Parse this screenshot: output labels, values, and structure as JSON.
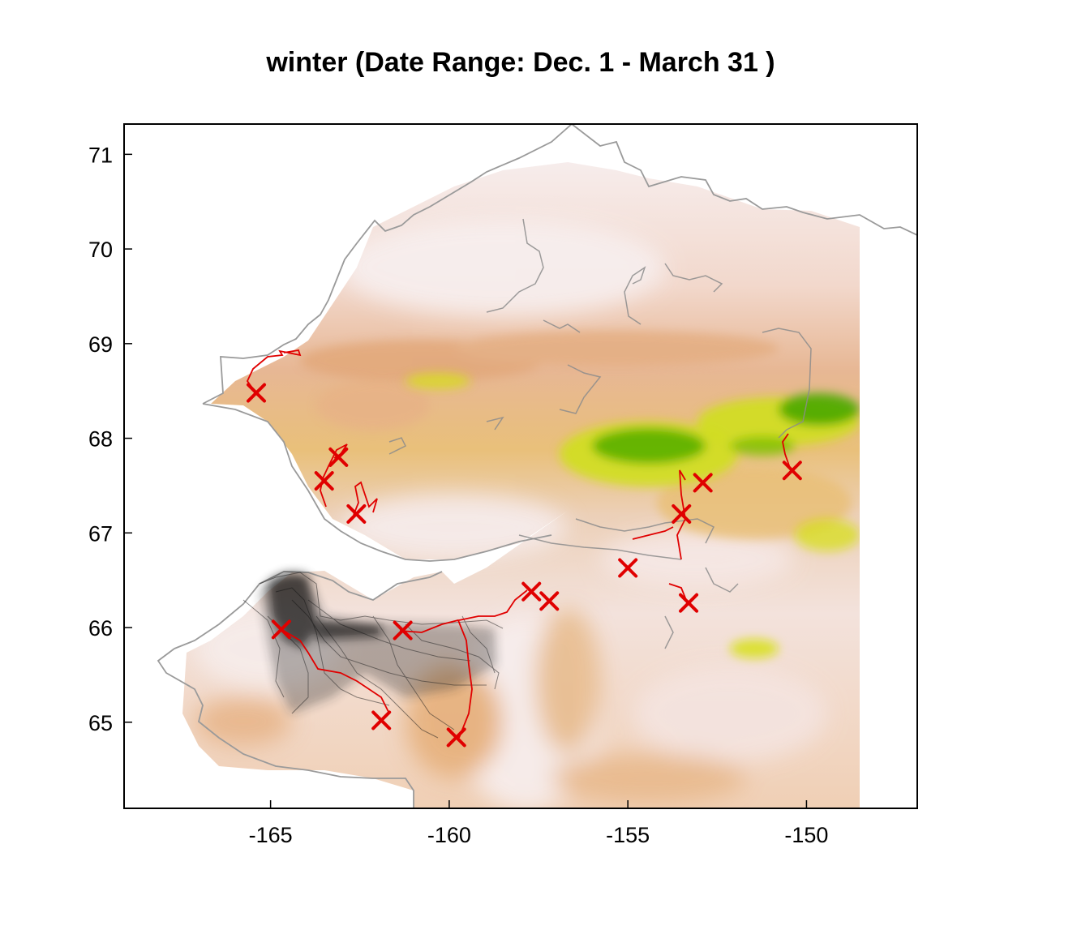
{
  "title": "winter (Date Range:  Dec. 1 - March 31 )",
  "colors": {
    "relief_low": "#f5e6e3",
    "relief_mid": "#e6b48c",
    "relief_high": "#e8c45a",
    "peaks_yellow": "#d6e010",
    "peaks_green": "#4aa800",
    "track_dense": "#1a1a1a",
    "track_grey": "#8c8c8c",
    "track_red": "#e00000",
    "marker_red": "#e00000",
    "coastline": "#9a9a9a"
  },
  "chart_data": {
    "type": "scatter",
    "title": "winter (Date Range:  Dec. 1 - March 31 )",
    "xlabel": "",
    "ylabel": "",
    "xlim": [
      -169.1,
      -146.9
    ],
    "ylim": [
      64.09,
      71.32
    ],
    "xticks": [
      -165,
      -160,
      -155,
      -150
    ],
    "yticks": [
      65,
      66,
      67,
      68,
      69,
      70,
      71
    ],
    "xtick_labels": [
      "-165",
      "-160",
      "-155",
      "-150"
    ],
    "ytick_labels": [
      "65",
      "66",
      "67",
      "68",
      "69",
      "70",
      "71"
    ],
    "grid": false,
    "legend": "none",
    "markers": [
      {
        "lon": -165.4,
        "lat": 68.48
      },
      {
        "lon": -163.1,
        "lat": 67.8
      },
      {
        "lon": -163.5,
        "lat": 67.55
      },
      {
        "lon": -162.6,
        "lat": 67.2
      },
      {
        "lon": -164.7,
        "lat": 65.98
      },
      {
        "lon": -161.3,
        "lat": 65.97
      },
      {
        "lon": -161.9,
        "lat": 65.02
      },
      {
        "lon": -159.8,
        "lat": 64.84
      },
      {
        "lon": -157.7,
        "lat": 66.38
      },
      {
        "lon": -157.2,
        "lat": 66.28
      },
      {
        "lon": -155.0,
        "lat": 66.63
      },
      {
        "lon": -153.5,
        "lat": 67.2
      },
      {
        "lon": -152.9,
        "lat": 67.53
      },
      {
        "lon": -153.3,
        "lat": 66.26
      },
      {
        "lon": -150.4,
        "lat": 67.66
      }
    ]
  }
}
